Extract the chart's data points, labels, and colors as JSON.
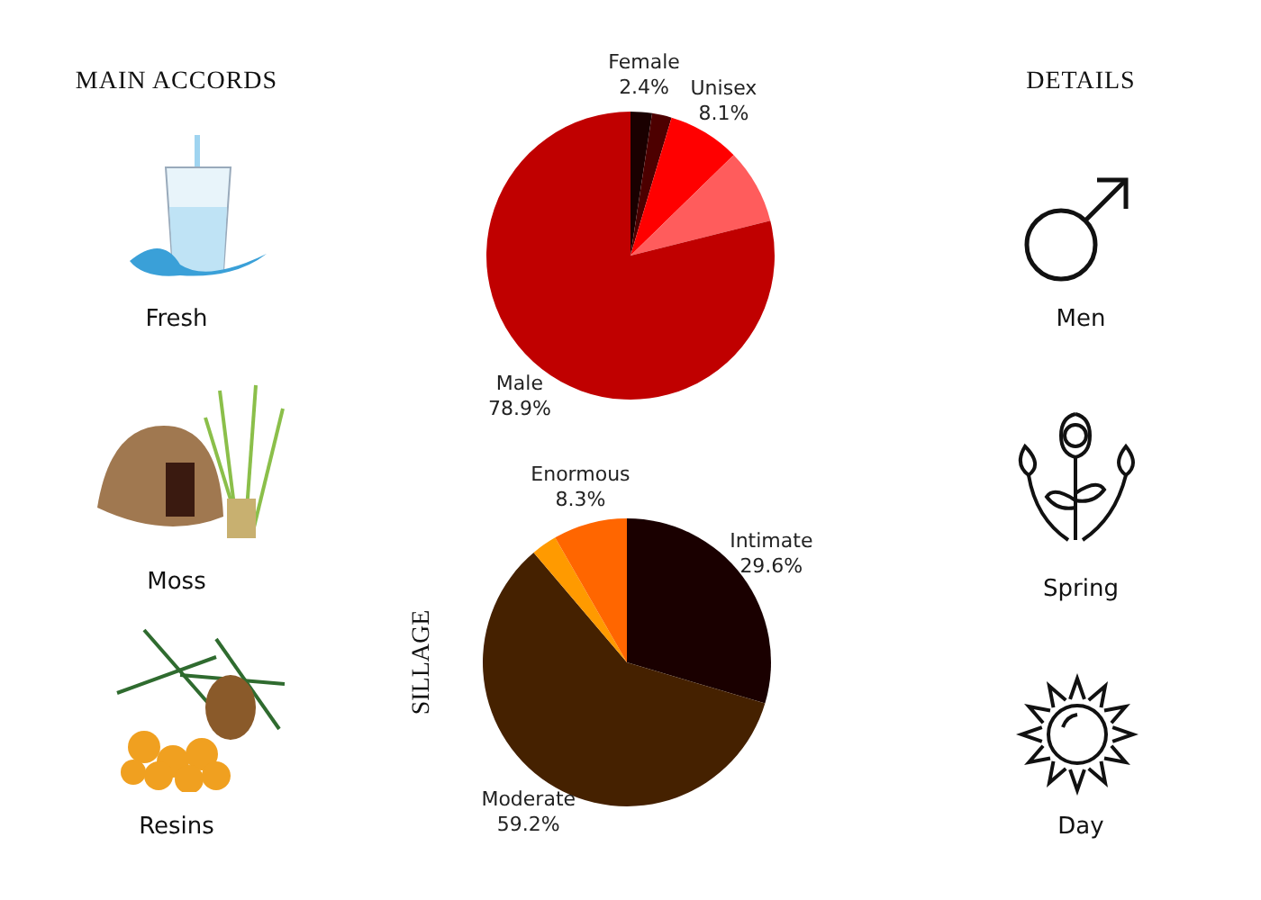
{
  "chart_data": [
    {
      "type": "other",
      "title": "MAIN ACCORDS",
      "annotations": [
        "Fresh",
        "Moss",
        "Resins"
      ]
    },
    {
      "type": "pie",
      "categories": [
        "Female",
        null,
        "Unisex",
        null,
        "Male"
      ],
      "values": [
        2.4,
        2.2,
        8.1,
        8.4,
        78.9
      ],
      "colors": [
        "#1a0000",
        "#4d0000",
        "#ff0000",
        "#ff5c5c",
        "#c00000"
      ],
      "value_labels": [
        "2.4%",
        null,
        "8.1%",
        null,
        "78.9%"
      ]
    },
    {
      "type": "pie",
      "title": "SILLAGE",
      "categories": [
        "Intimate",
        "Moderate",
        null,
        "Enormous"
      ],
      "values": [
        29.6,
        59.2,
        2.9,
        8.3
      ],
      "colors": [
        "#1a0000",
        "#452100",
        "#ff9a00",
        "#ff6600"
      ],
      "value_labels": [
        "29.6%",
        "59.2%",
        null,
        "8.3%"
      ]
    },
    {
      "type": "other",
      "title": "DETAILS",
      "annotations": [
        "Men",
        "Spring",
        "Day"
      ]
    }
  ]
}
